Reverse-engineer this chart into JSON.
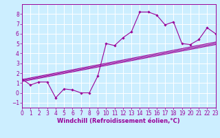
{
  "x_values": [
    0,
    1,
    2,
    3,
    4,
    5,
    6,
    7,
    8,
    9,
    10,
    11,
    12,
    13,
    14,
    15,
    16,
    17,
    18,
    19,
    20,
    21,
    22,
    23
  ],
  "y_values": [
    1.4,
    0.8,
    1.1,
    1.1,
    -0.5,
    0.4,
    0.3,
    0.0,
    0.0,
    1.7,
    5.0,
    4.8,
    5.6,
    6.2,
    8.2,
    8.2,
    7.9,
    6.9,
    7.2,
    5.0,
    4.9,
    5.4,
    6.6,
    6.0
  ],
  "line_color": "#990099",
  "bg_color": "#cceeff",
  "grid_color": "#ffffff",
  "xlabel": "Windchill (Refroidissement éolien,°C)",
  "xlim": [
    0,
    23
  ],
  "ylim": [
    -1.5,
    9
  ],
  "yticks": [
    -1,
    0,
    1,
    2,
    3,
    4,
    5,
    6,
    7,
    8
  ],
  "xticks": [
    0,
    1,
    2,
    3,
    4,
    5,
    6,
    7,
    8,
    9,
    10,
    11,
    12,
    13,
    14,
    15,
    16,
    17,
    18,
    19,
    20,
    21,
    22,
    23
  ],
  "reg_lines": [
    {
      "x0": 0,
      "y0": 1.35,
      "x1": 23,
      "y1": 5.15
    },
    {
      "x0": 0,
      "y0": 1.15,
      "x1": 23,
      "y1": 4.9
    },
    {
      "x0": 0,
      "y0": 1.25,
      "x1": 23,
      "y1": 5.02
    }
  ],
  "tick_fontsize": 5.5,
  "xlabel_fontsize": 6.0
}
